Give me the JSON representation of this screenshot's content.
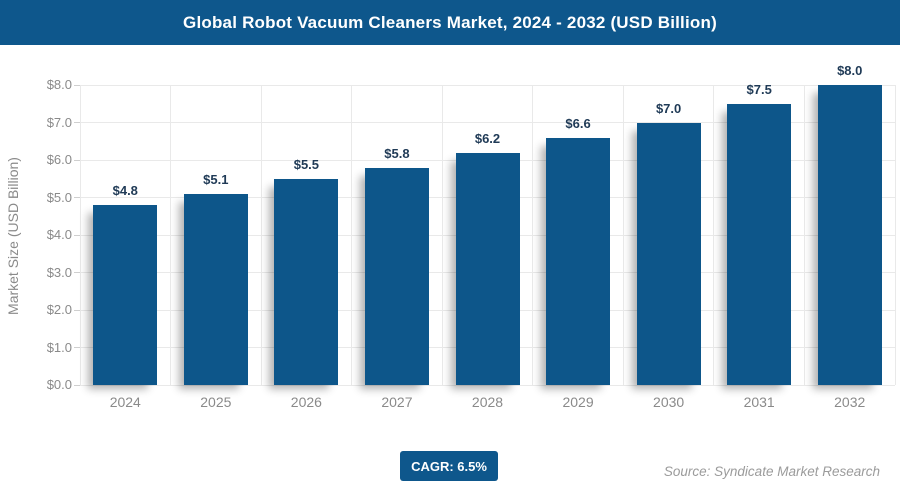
{
  "header": {
    "title": "Global Robot Vacuum Cleaners Market, 2024 - 2032 (USD Billion)"
  },
  "chart_data": {
    "type": "bar",
    "categories": [
      "2024",
      "2025",
      "2026",
      "2027",
      "2028",
      "2029",
      "2030",
      "2031",
      "2032"
    ],
    "values": [
      4.8,
      5.1,
      5.5,
      5.8,
      6.2,
      6.6,
      7.0,
      7.5,
      8.0
    ],
    "value_labels": [
      "$4.8",
      "$5.1",
      "$5.5",
      "$5.8",
      "$6.2",
      "$6.6",
      "$7.0",
      "$7.5",
      "$8.0"
    ],
    "title": "Global Robot Vacuum Cleaners Market, 2024 - 2032 (USD Billion)",
    "xlabel": "",
    "ylabel": "Market Size (USD Billion)",
    "ylim": [
      0,
      8
    ],
    "ytick_step": 1,
    "ytick_labels": [
      "$0.0",
      "$1.0",
      "$2.0",
      "$3.0",
      "$4.0",
      "$5.0",
      "$6.0",
      "$7.0",
      "$8.0"
    ],
    "grid": true,
    "legend": false
  },
  "footer": {
    "cagr_label": "CAGR: 6.5%",
    "source": "Source: Syndicate Market Research"
  },
  "colors": {
    "primary": "#0E578C",
    "bar": "#0D568A",
    "grid": "#E9E9E9",
    "axis_text": "#8A8A8A",
    "value_label": "#1F3A56",
    "source_text": "#9B9B9B"
  }
}
